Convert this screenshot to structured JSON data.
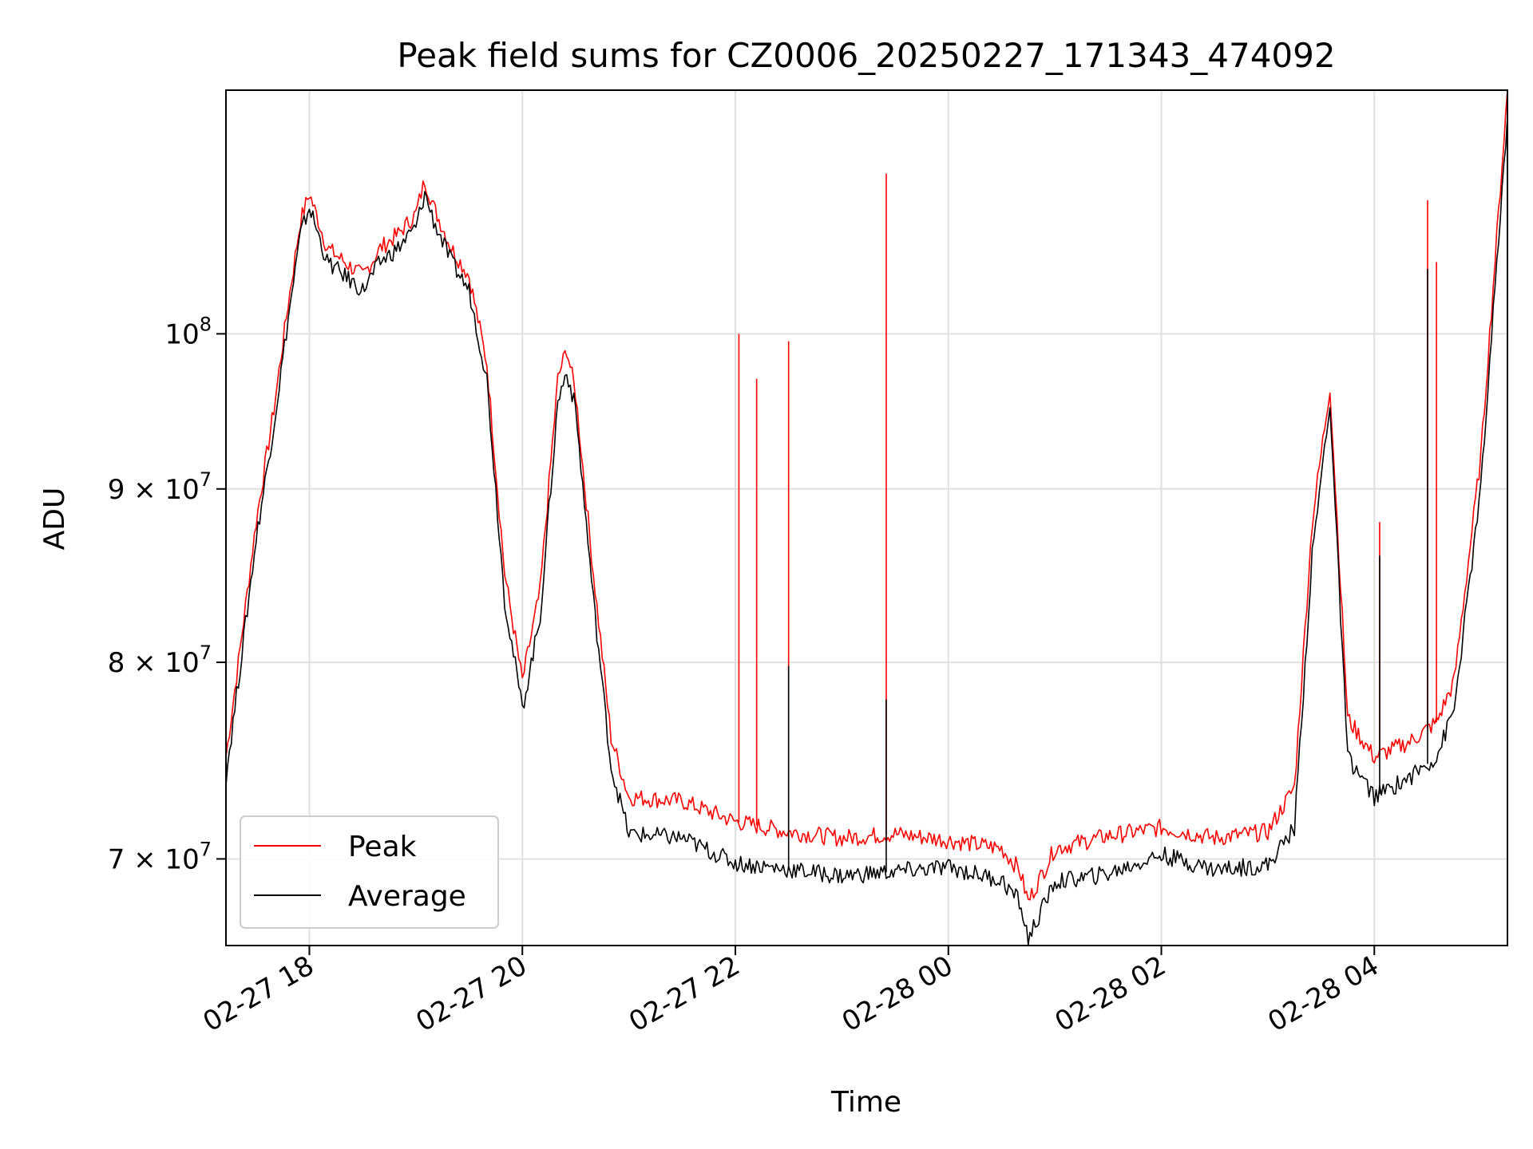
{
  "chart_data": {
    "type": "line",
    "title": "Peak field sums for CZ0006_20250227_171343_474092",
    "xlabel": "Time",
    "ylabel": "ADU",
    "yscale": "log",
    "xlim": [
      "2025-02-27 17:13",
      "2025-02-28 05:15"
    ],
    "ylim": [
      66000000,
      118000000
    ],
    "grid": true,
    "legend_position": "lower-left",
    "x_ticks": [
      {
        "value": "2025-02-27 18:00",
        "label": "02-27 18"
      },
      {
        "value": "2025-02-27 20:00",
        "label": "02-27 20"
      },
      {
        "value": "2025-02-27 22:00",
        "label": "02-27 22"
      },
      {
        "value": "2025-02-28 00:00",
        "label": "02-28 00"
      },
      {
        "value": "2025-02-28 02:00",
        "label": "02-28 02"
      },
      {
        "value": "2025-02-28 04:00",
        "label": "02-28 04"
      }
    ],
    "y_ticks": [
      {
        "value": 100000000,
        "label_base": "10",
        "label_sup": "8"
      },
      {
        "value": 90000000,
        "label_base": "9 × 10",
        "label_sup": "7"
      },
      {
        "value": 80000000,
        "label_base": "8 × 10",
        "label_sup": "7"
      },
      {
        "value": 70000000,
        "label_base": "7 × 10",
        "label_sup": "7"
      }
    ],
    "x": [
      "2025-02-27 17:13",
      "2025-02-27 17:20",
      "2025-02-27 17:30",
      "2025-02-27 17:40",
      "2025-02-27 17:48",
      "2025-02-27 17:55",
      "2025-02-27 18:00",
      "2025-02-27 18:05",
      "2025-02-27 18:10",
      "2025-02-27 18:20",
      "2025-02-27 18:30",
      "2025-02-27 18:40",
      "2025-02-27 18:50",
      "2025-02-27 19:00",
      "2025-02-27 19:05",
      "2025-02-27 19:10",
      "2025-02-27 19:20",
      "2025-02-27 19:30",
      "2025-02-27 19:40",
      "2025-02-27 19:50",
      "2025-02-27 20:00",
      "2025-02-27 20:10",
      "2025-02-27 20:20",
      "2025-02-27 20:25",
      "2025-02-27 20:30",
      "2025-02-27 20:40",
      "2025-02-27 20:50",
      "2025-02-27 21:00",
      "2025-02-27 21:30",
      "2025-02-27 22:00",
      "2025-02-27 22:30",
      "2025-02-27 23:00",
      "2025-02-27 23:30",
      "2025-02-28 00:00",
      "2025-02-28 00:30",
      "2025-02-28 00:40",
      "2025-02-28 00:45",
      "2025-02-28 01:00",
      "2025-02-28 01:30",
      "2025-02-28 02:00",
      "2025-02-28 02:30",
      "2025-02-28 03:00",
      "2025-02-28 03:15",
      "2025-02-28 03:25",
      "2025-02-28 03:35",
      "2025-02-28 03:45",
      "2025-02-28 04:00",
      "2025-02-28 04:20",
      "2025-02-28 04:35",
      "2025-02-28 04:45",
      "2025-02-28 05:00",
      "2025-02-28 05:15"
    ],
    "series": [
      {
        "name": "Peak",
        "color": "#ff0000",
        "values": [
          75000000,
          80000000,
          88000000,
          95000000,
          102000000,
          108000000,
          110000000,
          108000000,
          106000000,
          105000000,
          104000000,
          106000000,
          107000000,
          108500000,
          111000000,
          109000000,
          106000000,
          104000000,
          98000000,
          85000000,
          79000000,
          84000000,
          97000000,
          99000000,
          96000000,
          85000000,
          76000000,
          73000000,
          72800000,
          71800000,
          71300000,
          71000000,
          71200000,
          70900000,
          70500000,
          69500000,
          68000000,
          70500000,
          71100000,
          71500000,
          71000000,
          71300000,
          73500000,
          88000000,
          96500000,
          77000000,
          75000000,
          75800000,
          76800000,
          79000000,
          92000000,
          118000000
        ],
        "spikes": [
          {
            "x": "2025-02-27 22:02",
            "value": 100000000
          },
          {
            "x": "2025-02-27 22:12",
            "value": 97000000
          },
          {
            "x": "2025-02-27 22:30",
            "value": 99500000
          },
          {
            "x": "2025-02-27 23:25",
            "value": 111500000
          },
          {
            "x": "2025-02-28 04:03",
            "value": 88000000
          },
          {
            "x": "2025-02-28 04:30",
            "value": 109500000
          },
          {
            "x": "2025-02-28 04:35",
            "value": 105000000
          }
        ]
      },
      {
        "name": "Average",
        "color": "#000000",
        "values": [
          74000000,
          79000000,
          87000000,
          94000000,
          101000000,
          107000000,
          109000000,
          107000000,
          105000000,
          104000000,
          103000000,
          105000000,
          106000000,
          107500000,
          110000000,
          108000000,
          105000000,
          103000000,
          97000000,
          83500000,
          77500000,
          82500000,
          95500000,
          97500000,
          95000000,
          83500000,
          74500000,
          71200000,
          71000000,
          69800000,
          69500000,
          69200000,
          69400000,
          69600000,
          69000000,
          68000000,
          66300000,
          68900000,
          69300000,
          70200000,
          69500000,
          69700000,
          71500000,
          86000000,
          95500000,
          75000000,
          73000000,
          74000000,
          75000000,
          77500000,
          90000000,
          116000000
        ],
        "spikes": [
          {
            "x": "2025-02-27 22:30",
            "value": 79800000
          },
          {
            "x": "2025-02-27 23:25",
            "value": 78000000
          },
          {
            "x": "2025-02-28 04:03",
            "value": 86000000
          },
          {
            "x": "2025-02-28 04:30",
            "value": 104500000
          }
        ]
      }
    ]
  }
}
